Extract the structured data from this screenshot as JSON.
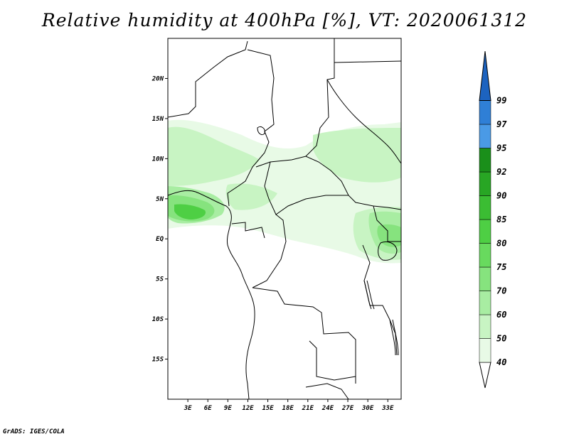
{
  "title": "Relative humidity at 400hPa [%], VT: 2020061312",
  "credit": "GrADS: IGES/COLA",
  "map": {
    "lon_range": [
      0,
      35
    ],
    "lat_range": [
      -20,
      25
    ],
    "lat_ticks": [
      {
        "value": 20,
        "label": "20N"
      },
      {
        "value": 15,
        "label": "15N"
      },
      {
        "value": 10,
        "label": "10N"
      },
      {
        "value": 5,
        "label": "5N"
      },
      {
        "value": 0,
        "label": "EQ"
      },
      {
        "value": -5,
        "label": "5S"
      },
      {
        "value": -10,
        "label": "10S"
      },
      {
        "value": -15,
        "label": "15S"
      }
    ],
    "lon_ticks": [
      {
        "value": 3,
        "label": "3E"
      },
      {
        "value": 6,
        "label": "6E"
      },
      {
        "value": 9,
        "label": "9E"
      },
      {
        "value": 12,
        "label": "12E"
      },
      {
        "value": 15,
        "label": "15E"
      },
      {
        "value": 18,
        "label": "18E"
      },
      {
        "value": 21,
        "label": "21E"
      },
      {
        "value": 24,
        "label": "24E"
      },
      {
        "value": 27,
        "label": "27E"
      },
      {
        "value": 30,
        "label": "30E"
      },
      {
        "value": 33,
        "label": "33E"
      }
    ]
  },
  "colorbar": {
    "levels": [
      {
        "label": "40",
        "color": "#e8fae6"
      },
      {
        "label": "50",
        "color": "#c8f4c3"
      },
      {
        "label": "60",
        "color": "#a8eda2"
      },
      {
        "label": "70",
        "color": "#86e37e"
      },
      {
        "label": "75",
        "color": "#68da5e"
      },
      {
        "label": "80",
        "color": "#4ecf44"
      },
      {
        "label": "85",
        "color": "#3bbd33"
      },
      {
        "label": "90",
        "color": "#28a624"
      },
      {
        "label": "92",
        "color": "#1a8f1a"
      },
      {
        "label": "95",
        "color": "#4a9ae6"
      },
      {
        "label": "97",
        "color": "#2f7fd6"
      },
      {
        "label": "99",
        "color": "#1d63bf"
      }
    ]
  }
}
